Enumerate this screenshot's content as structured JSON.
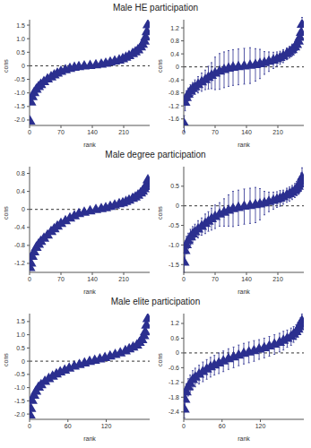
{
  "chart_data": [
    {
      "type": "scatter",
      "title": "Male HE participation",
      "x_label": "rank",
      "y_label": "cons",
      "xlim": [
        0,
        268
      ],
      "xticks": [
        0,
        70,
        140,
        210
      ],
      "ylim": [
        -2.2,
        1.7
      ],
      "yticks": [
        {
          "value": -2,
          "label": "-2.0"
        },
        -1.5,
        {
          "value": -1,
          "label": "-1.0"
        },
        -0.5,
        0,
        0.5,
        {
          "value": 1,
          "label": "1.0"
        },
        1.5
      ],
      "reference_line": {
        "y": 0,
        "line_style": "dashed"
      },
      "color": "#2b2f8f",
      "marker": "triangle",
      "x": [
        1,
        3,
        6,
        10,
        15,
        20,
        25,
        32,
        40,
        48,
        55,
        62,
        70,
        80,
        90,
        100,
        110,
        122,
        135,
        148,
        160,
        170,
        180,
        190,
        200,
        208,
        215,
        222,
        230,
        236,
        242,
        248,
        252,
        256,
        259,
        262,
        264
      ],
      "values": [
        -2.05,
        -1.35,
        -1.15,
        -1.0,
        -0.88,
        -0.78,
        -0.7,
        -0.6,
        -0.5,
        -0.42,
        -0.35,
        -0.28,
        -0.22,
        -0.16,
        -0.11,
        -0.07,
        -0.04,
        -0.02,
        0.0,
        0.02,
        0.05,
        0.08,
        0.12,
        0.16,
        0.2,
        0.25,
        0.3,
        0.36,
        0.44,
        0.5,
        0.58,
        0.68,
        0.78,
        0.9,
        1.05,
        1.25,
        1.5
      ]
    },
    {
      "type": "scatter",
      "x_label": "rank",
      "y_label": "cons",
      "xlim": [
        0,
        268
      ],
      "xticks": [
        0,
        70,
        140,
        210
      ],
      "ylim": [
        -1.8,
        1.45
      ],
      "yticks": [
        -1.6,
        -1.2,
        -0.8,
        -0.4,
        0,
        0.4,
        0.8,
        1.2
      ],
      "reference_line": {
        "y": 0,
        "line_style": "dashed"
      },
      "color": "#2b2f8f",
      "marker": "triangle",
      "x": [
        1,
        3,
        6,
        10,
        15,
        20,
        25,
        32,
        40,
        48,
        55,
        62,
        70,
        80,
        90,
        100,
        110,
        122,
        135,
        148,
        160,
        170,
        180,
        190,
        200,
        208,
        215,
        222,
        230,
        236,
        242,
        248,
        252,
        256,
        259,
        262,
        264
      ],
      "values": [
        -1.75,
        -1.1,
        -0.95,
        -0.85,
        -0.75,
        -0.68,
        -0.62,
        -0.55,
        -0.47,
        -0.4,
        -0.33,
        -0.27,
        -0.2,
        -0.14,
        -0.09,
        -0.05,
        -0.02,
        0.0,
        0.02,
        0.04,
        0.06,
        0.09,
        0.12,
        0.16,
        0.2,
        0.24,
        0.28,
        0.33,
        0.4,
        0.45,
        0.52,
        0.6,
        0.68,
        0.78,
        0.9,
        1.05,
        1.3
      ],
      "error": [
        0.25,
        0.25,
        0.22,
        0.2,
        0.2,
        0.2,
        0.22,
        0.25,
        0.28,
        0.3,
        0.35,
        0.4,
        0.5,
        0.55,
        0.55,
        0.55,
        0.55,
        0.55,
        0.55,
        0.55,
        0.5,
        0.45,
        0.35,
        0.3,
        0.25,
        0.22,
        0.2,
        0.2,
        0.18,
        0.18,
        0.18,
        0.18,
        0.18,
        0.18,
        0.2,
        0.2,
        0.22
      ]
    },
    {
      "type": "scatter",
      "title": "Male degree participation",
      "x_label": "rank",
      "y_label": "cons",
      "xlim": [
        0,
        268
      ],
      "xticks": [
        0,
        70,
        140,
        210
      ],
      "ylim": [
        -1.4,
        0.95
      ],
      "yticks": [
        -1.2,
        -0.8,
        -0.4,
        0,
        0.4,
        0.8
      ],
      "reference_line": {
        "y": 0,
        "line_style": "dashed"
      },
      "color": "#2b2f8f",
      "marker": "triangle",
      "x": [
        1,
        3,
        6,
        10,
        15,
        20,
        25,
        32,
        40,
        48,
        55,
        62,
        70,
        80,
        90,
        100,
        110,
        122,
        135,
        148,
        160,
        170,
        180,
        190,
        200,
        208,
        215,
        222,
        230,
        236,
        242,
        248,
        252,
        256,
        259,
        262,
        264
      ],
      "values": [
        -1.3,
        -1.2,
        -1.05,
        -0.95,
        -0.85,
        -0.78,
        -0.72,
        -0.65,
        -0.58,
        -0.5,
        -0.44,
        -0.38,
        -0.32,
        -0.26,
        -0.2,
        -0.15,
        -0.1,
        -0.07,
        -0.04,
        -0.01,
        0.01,
        0.03,
        0.06,
        0.09,
        0.12,
        0.14,
        0.17,
        0.2,
        0.24,
        0.27,
        0.31,
        0.36,
        0.4,
        0.45,
        0.5,
        0.56,
        0.65
      ]
    },
    {
      "type": "scatter",
      "x_label": "rank",
      "y_label": "cons",
      "xlim": [
        0,
        268
      ],
      "xticks": [
        0,
        70,
        140,
        210
      ],
      "ylim": [
        -1.7,
        1.0
      ],
      "yticks": [
        -1.5,
        {
          "value": -1,
          "label": "-1.0"
        },
        -0.5,
        0,
        0.5
      ],
      "reference_line": {
        "y": 0,
        "line_style": "dashed"
      },
      "color": "#2b2f8f",
      "marker": "triangle",
      "x": [
        1,
        3,
        6,
        10,
        15,
        20,
        25,
        32,
        40,
        48,
        55,
        62,
        70,
        80,
        90,
        100,
        110,
        122,
        135,
        148,
        160,
        170,
        180,
        190,
        200,
        208,
        215,
        222,
        230,
        236,
        242,
        248,
        252,
        256,
        259,
        262,
        264
      ],
      "values": [
        -1.45,
        -1.15,
        -1.0,
        -0.9,
        -0.8,
        -0.73,
        -0.67,
        -0.6,
        -0.53,
        -0.46,
        -0.4,
        -0.34,
        -0.28,
        -0.22,
        -0.17,
        -0.12,
        -0.08,
        -0.05,
        -0.02,
        0.0,
        0.02,
        0.04,
        0.07,
        0.1,
        0.13,
        0.16,
        0.19,
        0.22,
        0.27,
        0.3,
        0.34,
        0.39,
        0.44,
        0.49,
        0.55,
        0.62,
        0.72
      ],
      "error": [
        0.25,
        0.25,
        0.22,
        0.2,
        0.2,
        0.2,
        0.2,
        0.22,
        0.22,
        0.25,
        0.25,
        0.28,
        0.3,
        0.3,
        0.35,
        0.4,
        0.45,
        0.45,
        0.45,
        0.45,
        0.45,
        0.4,
        0.3,
        0.25,
        0.22,
        0.2,
        0.2,
        0.18,
        0.18,
        0.18,
        0.18,
        0.18,
        0.18,
        0.2,
        0.2,
        0.22,
        0.25
      ]
    },
    {
      "type": "scatter",
      "title": "Male elite participation",
      "x_label": "rank",
      "y_label": "cons",
      "xlim": [
        0,
        188
      ],
      "xticks": [
        0,
        60,
        120
      ],
      "ylim": [
        -2.2,
        1.8
      ],
      "yticks": [
        {
          "value": -2,
          "label": "-2.0"
        },
        -1.5,
        {
          "value": -1,
          "label": "-1.0"
        },
        -0.5,
        0,
        0.5,
        {
          "value": 1,
          "label": "1.0"
        },
        1.5
      ],
      "reference_line": {
        "y": 0,
        "line_style": "dashed"
      },
      "color": "#2b2f8f",
      "marker": "triangle",
      "x": [
        1,
        2,
        4,
        7,
        10,
        14,
        18,
        24,
        30,
        36,
        42,
        48,
        55,
        62,
        70,
        78,
        86,
        94,
        102,
        110,
        118,
        126,
        134,
        142,
        150,
        156,
        162,
        168,
        172,
        176,
        179,
        181,
        183,
        185
      ],
      "values": [
        -2.05,
        -1.8,
        -1.5,
        -1.3,
        -1.15,
        -1.0,
        -0.9,
        -0.78,
        -0.67,
        -0.58,
        -0.5,
        -0.42,
        -0.35,
        -0.28,
        -0.2,
        -0.14,
        -0.08,
        -0.02,
        0.02,
        0.07,
        0.12,
        0.18,
        0.24,
        0.3,
        0.38,
        0.45,
        0.52,
        0.6,
        0.7,
        0.8,
        0.95,
        1.1,
        1.35,
        1.6
      ]
    },
    {
      "type": "scatter",
      "x_label": "rank",
      "y_label": "cons",
      "xlim": [
        0,
        188
      ],
      "xticks": [
        0,
        60,
        120
      ],
      "ylim": [
        -2.7,
        1.6
      ],
      "yticks": [
        -2.4,
        -1.8,
        -1.2,
        -0.6,
        0,
        0.6,
        1.2
      ],
      "reference_line": {
        "y": 0,
        "line_style": "dashed"
      },
      "color": "#2b2f8f",
      "marker": "triangle",
      "x": [
        1,
        2,
        4,
        7,
        10,
        14,
        18,
        24,
        30,
        36,
        42,
        48,
        55,
        62,
        70,
        78,
        86,
        94,
        102,
        110,
        118,
        126,
        134,
        142,
        150,
        156,
        162,
        168,
        172,
        176,
        179,
        181,
        183,
        185
      ],
      "values": [
        -2.3,
        -1.9,
        -1.6,
        -1.4,
        -1.25,
        -1.1,
        -1.0,
        -0.88,
        -0.77,
        -0.67,
        -0.58,
        -0.5,
        -0.42,
        -0.34,
        -0.25,
        -0.18,
        -0.1,
        -0.03,
        0.02,
        0.08,
        0.14,
        0.2,
        0.27,
        0.34,
        0.42,
        0.5,
        0.58,
        0.66,
        0.75,
        0.85,
        0.95,
        1.05,
        1.15,
        1.3
      ],
      "error": [
        0.35,
        0.35,
        0.35,
        0.35,
        0.35,
        0.38,
        0.38,
        0.38,
        0.4,
        0.4,
        0.4,
        0.4,
        0.42,
        0.42,
        0.42,
        0.42,
        0.42,
        0.42,
        0.42,
        0.42,
        0.4,
        0.4,
        0.4,
        0.4,
        0.38,
        0.38,
        0.35,
        0.35,
        0.32,
        0.3,
        0.3,
        0.28,
        0.28,
        0.28
      ]
    }
  ]
}
